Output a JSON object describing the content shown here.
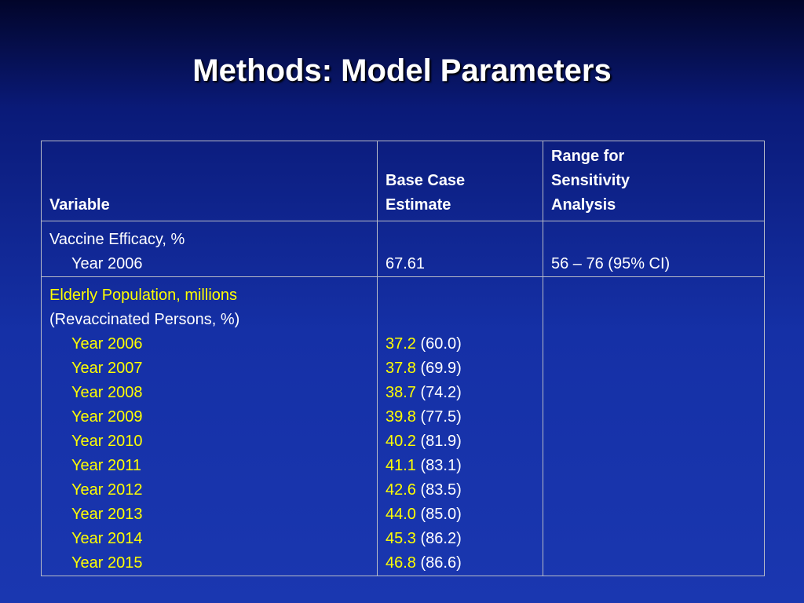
{
  "title": "Methods: Model Parameters",
  "table": {
    "header": [
      [
        "Variable"
      ],
      [
        "Base Case",
        "Estimate"
      ],
      [
        "Range for",
        "Sensitivity",
        "Analysis"
      ]
    ],
    "rows": [
      {
        "variable": "Vaccine Efficacy, %",
        "items": [
          {
            "label": "Year 2006",
            "estimate": "67.61",
            "range": "56 – 76 (95% CI)"
          }
        ]
      },
      {
        "variable": "Elderly Population, millions",
        "note": "(Revaccinated Persons, %)",
        "items": [
          {
            "label": "Year 2006",
            "estimate": "37.2",
            "percent": "(60.0)"
          },
          {
            "label": "Year 2007",
            "estimate": "37.8",
            "percent": "(69.9)"
          },
          {
            "label": "Year 2008",
            "estimate": "38.7",
            "percent": "(74.2)"
          },
          {
            "label": "Year 2009",
            "estimate": "39.8",
            "percent": "(77.5)"
          },
          {
            "label": "Year 2010",
            "estimate": "40.2",
            "percent": "(81.9)"
          },
          {
            "label": "Year 2011",
            "estimate": "41.1",
            "percent": "(83.1)"
          },
          {
            "label": "Year 2012",
            "estimate": "42.6",
            "percent": "(83.5)"
          },
          {
            "label": "Year 2013",
            "estimate": "44.0",
            "percent": "(85.0)"
          },
          {
            "label": "Year 2014",
            "estimate": "45.3",
            "percent": "(86.2)"
          },
          {
            "label": "Year 2015",
            "estimate": "46.8",
            "percent": "(86.6)"
          }
        ]
      }
    ]
  }
}
